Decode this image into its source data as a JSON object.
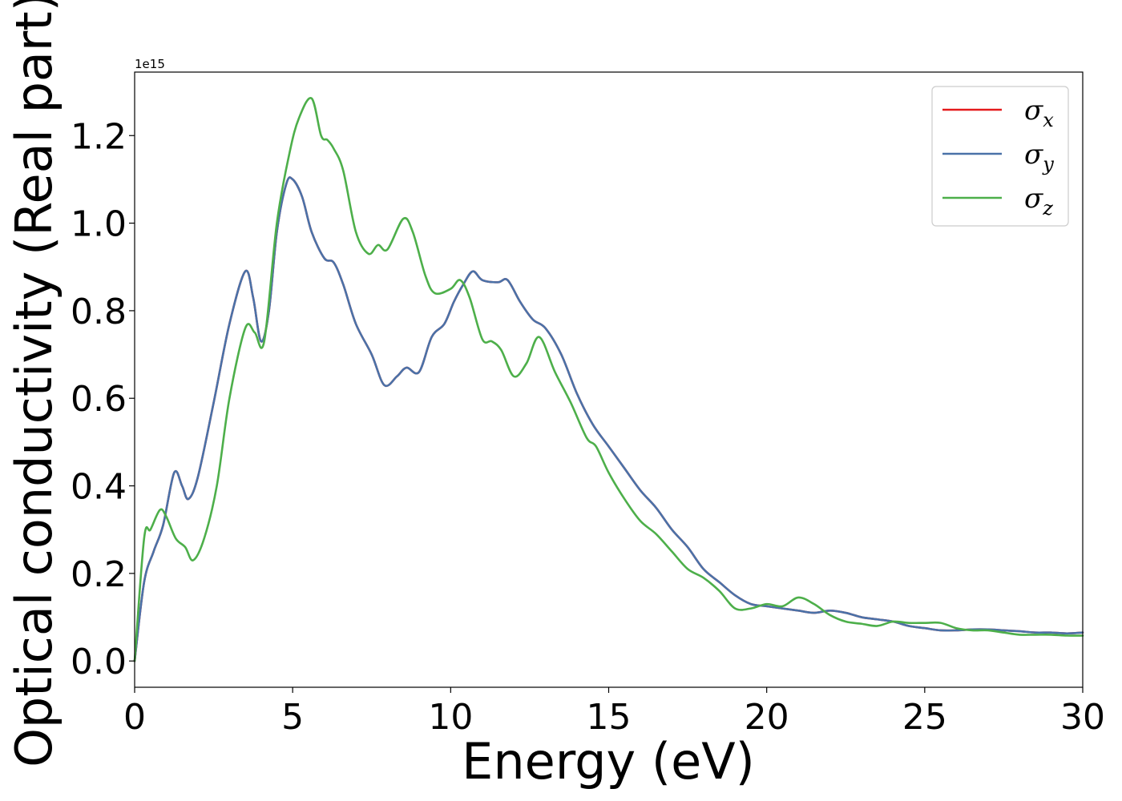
{
  "chart_data": {
    "type": "line",
    "xlabel": "Energy (eV)",
    "ylabel": "Optical conductivity (Real part)",
    "y_offset_text": "1e15",
    "xlim": [
      0,
      30
    ],
    "ylim": [
      -0.06,
      1.345
    ],
    "x_ticks": [
      0,
      5,
      10,
      15,
      20,
      25,
      30
    ],
    "x_tick_labels": [
      "0",
      "5",
      "10",
      "15",
      "20",
      "25",
      "30"
    ],
    "y_ticks": [
      0.0,
      0.2,
      0.4,
      0.6,
      0.8,
      1.0,
      1.2
    ],
    "y_tick_labels": [
      "0.0",
      "0.2",
      "0.4",
      "0.6",
      "0.8",
      "1.0",
      "1.2"
    ],
    "grid": false,
    "legend_position": "top-right",
    "series": [
      {
        "name": "σx",
        "legend_base": "σ",
        "legend_sub": "x",
        "color": "#e41a1c",
        "x": [
          0,
          0.3,
          0.6,
          0.9,
          1.25,
          1.5,
          1.7,
          2.0,
          2.5,
          3.0,
          3.5,
          3.75,
          4.0,
          4.25,
          4.5,
          4.8,
          5.0,
          5.3,
          5.6,
          6.0,
          6.3,
          6.6,
          7.0,
          7.5,
          7.9,
          8.3,
          8.6,
          9.0,
          9.4,
          9.8,
          10.1,
          10.4,
          10.7,
          11.0,
          11.5,
          11.8,
          12.2,
          12.6,
          13.0,
          13.5,
          14.0,
          14.5,
          15.0,
          15.5,
          16.0,
          16.5,
          17.0,
          17.5,
          18.0,
          18.5,
          19.0,
          19.5,
          20.0,
          20.5,
          21.0,
          21.5,
          22.0,
          22.5,
          23.0,
          23.5,
          24.0,
          24.5,
          25.0,
          25.5,
          26.0,
          26.5,
          27.0,
          27.5,
          28.0,
          28.5,
          29.0,
          29.5,
          30.0
        ],
        "y": [
          0.0,
          0.18,
          0.25,
          0.31,
          0.43,
          0.4,
          0.37,
          0.42,
          0.59,
          0.77,
          0.89,
          0.83,
          0.73,
          0.8,
          0.98,
          1.09,
          1.1,
          1.06,
          0.98,
          0.92,
          0.91,
          0.86,
          0.77,
          0.7,
          0.63,
          0.65,
          0.67,
          0.66,
          0.74,
          0.77,
          0.82,
          0.86,
          0.89,
          0.87,
          0.865,
          0.87,
          0.82,
          0.78,
          0.76,
          0.7,
          0.61,
          0.54,
          0.49,
          0.44,
          0.39,
          0.35,
          0.3,
          0.26,
          0.21,
          0.18,
          0.15,
          0.13,
          0.125,
          0.12,
          0.115,
          0.11,
          0.115,
          0.11,
          0.1,
          0.095,
          0.09,
          0.08,
          0.075,
          0.07,
          0.07,
          0.072,
          0.072,
          0.07,
          0.068,
          0.065,
          0.065,
          0.063,
          0.065
        ]
      },
      {
        "name": "σy",
        "legend_base": "σ",
        "legend_sub": "y",
        "color": "#4a72a8",
        "x": [
          0,
          0.3,
          0.6,
          0.9,
          1.25,
          1.5,
          1.7,
          2.0,
          2.5,
          3.0,
          3.5,
          3.75,
          4.0,
          4.25,
          4.5,
          4.8,
          5.0,
          5.3,
          5.6,
          6.0,
          6.3,
          6.6,
          7.0,
          7.5,
          7.9,
          8.3,
          8.6,
          9.0,
          9.4,
          9.8,
          10.1,
          10.4,
          10.7,
          11.0,
          11.5,
          11.8,
          12.2,
          12.6,
          13.0,
          13.5,
          14.0,
          14.5,
          15.0,
          15.5,
          16.0,
          16.5,
          17.0,
          17.5,
          18.0,
          18.5,
          19.0,
          19.5,
          20.0,
          20.5,
          21.0,
          21.5,
          22.0,
          22.5,
          23.0,
          23.5,
          24.0,
          24.5,
          25.0,
          25.5,
          26.0,
          26.5,
          27.0,
          27.5,
          28.0,
          28.5,
          29.0,
          29.5,
          30.0
        ],
        "y": [
          0.0,
          0.18,
          0.25,
          0.31,
          0.43,
          0.4,
          0.37,
          0.42,
          0.59,
          0.77,
          0.89,
          0.83,
          0.73,
          0.8,
          0.98,
          1.09,
          1.1,
          1.06,
          0.98,
          0.92,
          0.91,
          0.86,
          0.77,
          0.7,
          0.63,
          0.65,
          0.67,
          0.66,
          0.74,
          0.77,
          0.82,
          0.86,
          0.89,
          0.87,
          0.865,
          0.87,
          0.82,
          0.78,
          0.76,
          0.7,
          0.61,
          0.54,
          0.49,
          0.44,
          0.39,
          0.35,
          0.3,
          0.26,
          0.21,
          0.18,
          0.15,
          0.13,
          0.125,
          0.12,
          0.115,
          0.11,
          0.115,
          0.11,
          0.1,
          0.095,
          0.09,
          0.08,
          0.075,
          0.07,
          0.07,
          0.072,
          0.072,
          0.07,
          0.068,
          0.065,
          0.065,
          0.063,
          0.065
        ]
      },
      {
        "name": "σz",
        "legend_base": "σ",
        "legend_sub": "z",
        "color": "#4daf4a",
        "x": [
          0,
          0.3,
          0.5,
          0.8,
          1.0,
          1.3,
          1.6,
          1.85,
          2.2,
          2.6,
          3.0,
          3.5,
          3.8,
          4.1,
          4.5,
          4.9,
          5.2,
          5.6,
          5.9,
          6.1,
          6.3,
          6.6,
          7.0,
          7.4,
          7.7,
          8.0,
          8.5,
          8.8,
          9.2,
          9.5,
          10.0,
          10.3,
          10.6,
          11.0,
          11.3,
          11.6,
          12.0,
          12.4,
          12.8,
          13.3,
          13.8,
          14.3,
          14.6,
          15.0,
          15.5,
          16.0,
          16.5,
          17.0,
          17.5,
          18.0,
          18.5,
          19.0,
          19.5,
          20.0,
          20.5,
          21.0,
          21.5,
          22.0,
          22.5,
          23.0,
          23.5,
          24.0,
          24.5,
          25.0,
          25.5,
          26.0,
          26.5,
          27.0,
          27.5,
          28.0,
          28.5,
          29.0,
          29.5,
          30.0
        ],
        "y": [
          0.0,
          0.28,
          0.3,
          0.345,
          0.33,
          0.28,
          0.26,
          0.23,
          0.28,
          0.4,
          0.6,
          0.76,
          0.75,
          0.73,
          1.0,
          1.16,
          1.24,
          1.285,
          1.2,
          1.19,
          1.17,
          1.12,
          0.98,
          0.93,
          0.95,
          0.94,
          1.01,
          0.98,
          0.88,
          0.84,
          0.85,
          0.87,
          0.83,
          0.735,
          0.73,
          0.71,
          0.65,
          0.68,
          0.74,
          0.66,
          0.59,
          0.51,
          0.49,
          0.43,
          0.37,
          0.32,
          0.29,
          0.25,
          0.21,
          0.19,
          0.16,
          0.12,
          0.12,
          0.13,
          0.125,
          0.145,
          0.13,
          0.105,
          0.09,
          0.085,
          0.08,
          0.09,
          0.087,
          0.087,
          0.087,
          0.075,
          0.07,
          0.07,
          0.065,
          0.06,
          0.06,
          0.06,
          0.058,
          0.058
        ]
      }
    ]
  }
}
